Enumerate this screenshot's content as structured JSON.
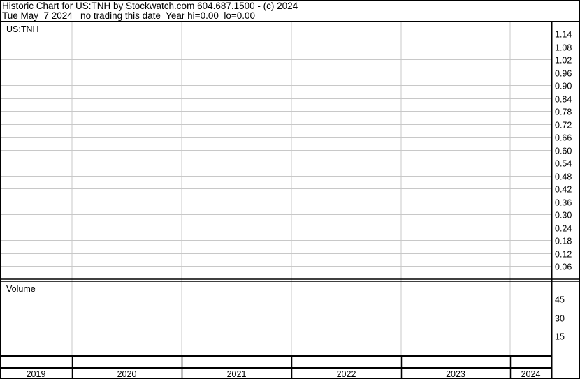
{
  "header": {
    "line1": "Historic Chart for US:TNH by Stockwatch.com 604.687.1500 - (c) 2024",
    "line2": "Tue May  7 2024   no trading this date  Year hi=0.00  lo=0.00"
  },
  "chart_data": [
    {
      "type": "line",
      "title": "US:TNH",
      "series": [],
      "y_ticks": [
        "1.14",
        "1.08",
        "1.02",
        "0.96",
        "0.90",
        "0.84",
        "0.78",
        "0.72",
        "0.66",
        "0.60",
        "0.54",
        "0.48",
        "0.42",
        "0.36",
        "0.30",
        "0.24",
        "0.18",
        "0.12",
        "0.06"
      ],
      "ylim": [
        0,
        1.2
      ],
      "x_ticks": [
        "2019",
        "2020",
        "2021",
        "2022",
        "2023",
        "2024"
      ],
      "grid": true,
      "y_axis_side": "right"
    },
    {
      "type": "bar",
      "title": "Volume",
      "series": [],
      "y_ticks": [
        "45",
        "30",
        "15"
      ],
      "ylim": [
        0,
        60
      ],
      "grid": true,
      "y_axis_side": "right"
    }
  ],
  "colors": {
    "grid": "#c8c8c8",
    "frame": "#000000",
    "background": "#ffffff"
  }
}
